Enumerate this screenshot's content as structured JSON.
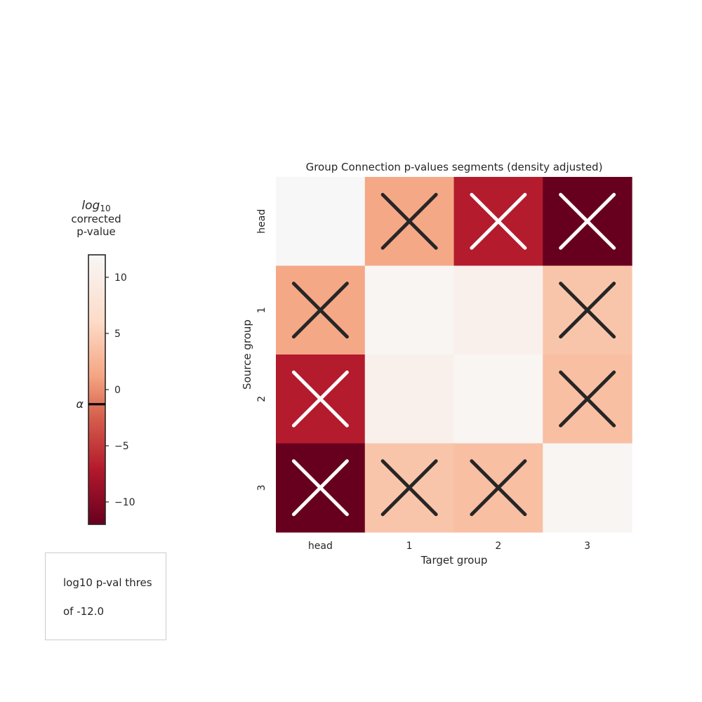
{
  "chart_data": {
    "type": "heatmap",
    "title": "Group Connection p-values segments (density adjusted)",
    "xlabel": "Target group",
    "ylabel": "Source group",
    "x_categories": [
      "head",
      "1",
      "2",
      "3"
    ],
    "y_categories": [
      "head",
      "1",
      "2",
      "3"
    ],
    "values": [
      [
        12.0,
        1.5,
        -7.0,
        -12.0
      ],
      [
        1.5,
        11.5,
        10.5,
        4.0
      ],
      [
        -7.0,
        10.5,
        11.5,
        3.5
      ],
      [
        -12.0,
        4.0,
        3.5,
        11.5
      ]
    ],
    "crossed": [
      [
        false,
        true,
        true,
        true
      ],
      [
        true,
        false,
        false,
        true
      ],
      [
        true,
        false,
        false,
        true
      ],
      [
        true,
        true,
        true,
        false
      ]
    ],
    "colorbar": {
      "label_log": "log",
      "label_sub": "10",
      "label_line2": "corrected",
      "label_line3": "p-value",
      "range": [
        -12,
        12
      ],
      "ticks": [
        {
          "value": 10,
          "label": "10"
        },
        {
          "value": 5,
          "label": "5"
        },
        {
          "value": 0,
          "label": "0"
        },
        {
          "value": -5,
          "label": "−5"
        },
        {
          "value": -10,
          "label": "−10"
        }
      ],
      "alpha_label": "α",
      "alpha_value": -1.3
    },
    "colormap": "RdBu-reds",
    "grid": false
  },
  "note": {
    "line1": "log10 p-val thres",
    "line2": "of -12.0"
  }
}
